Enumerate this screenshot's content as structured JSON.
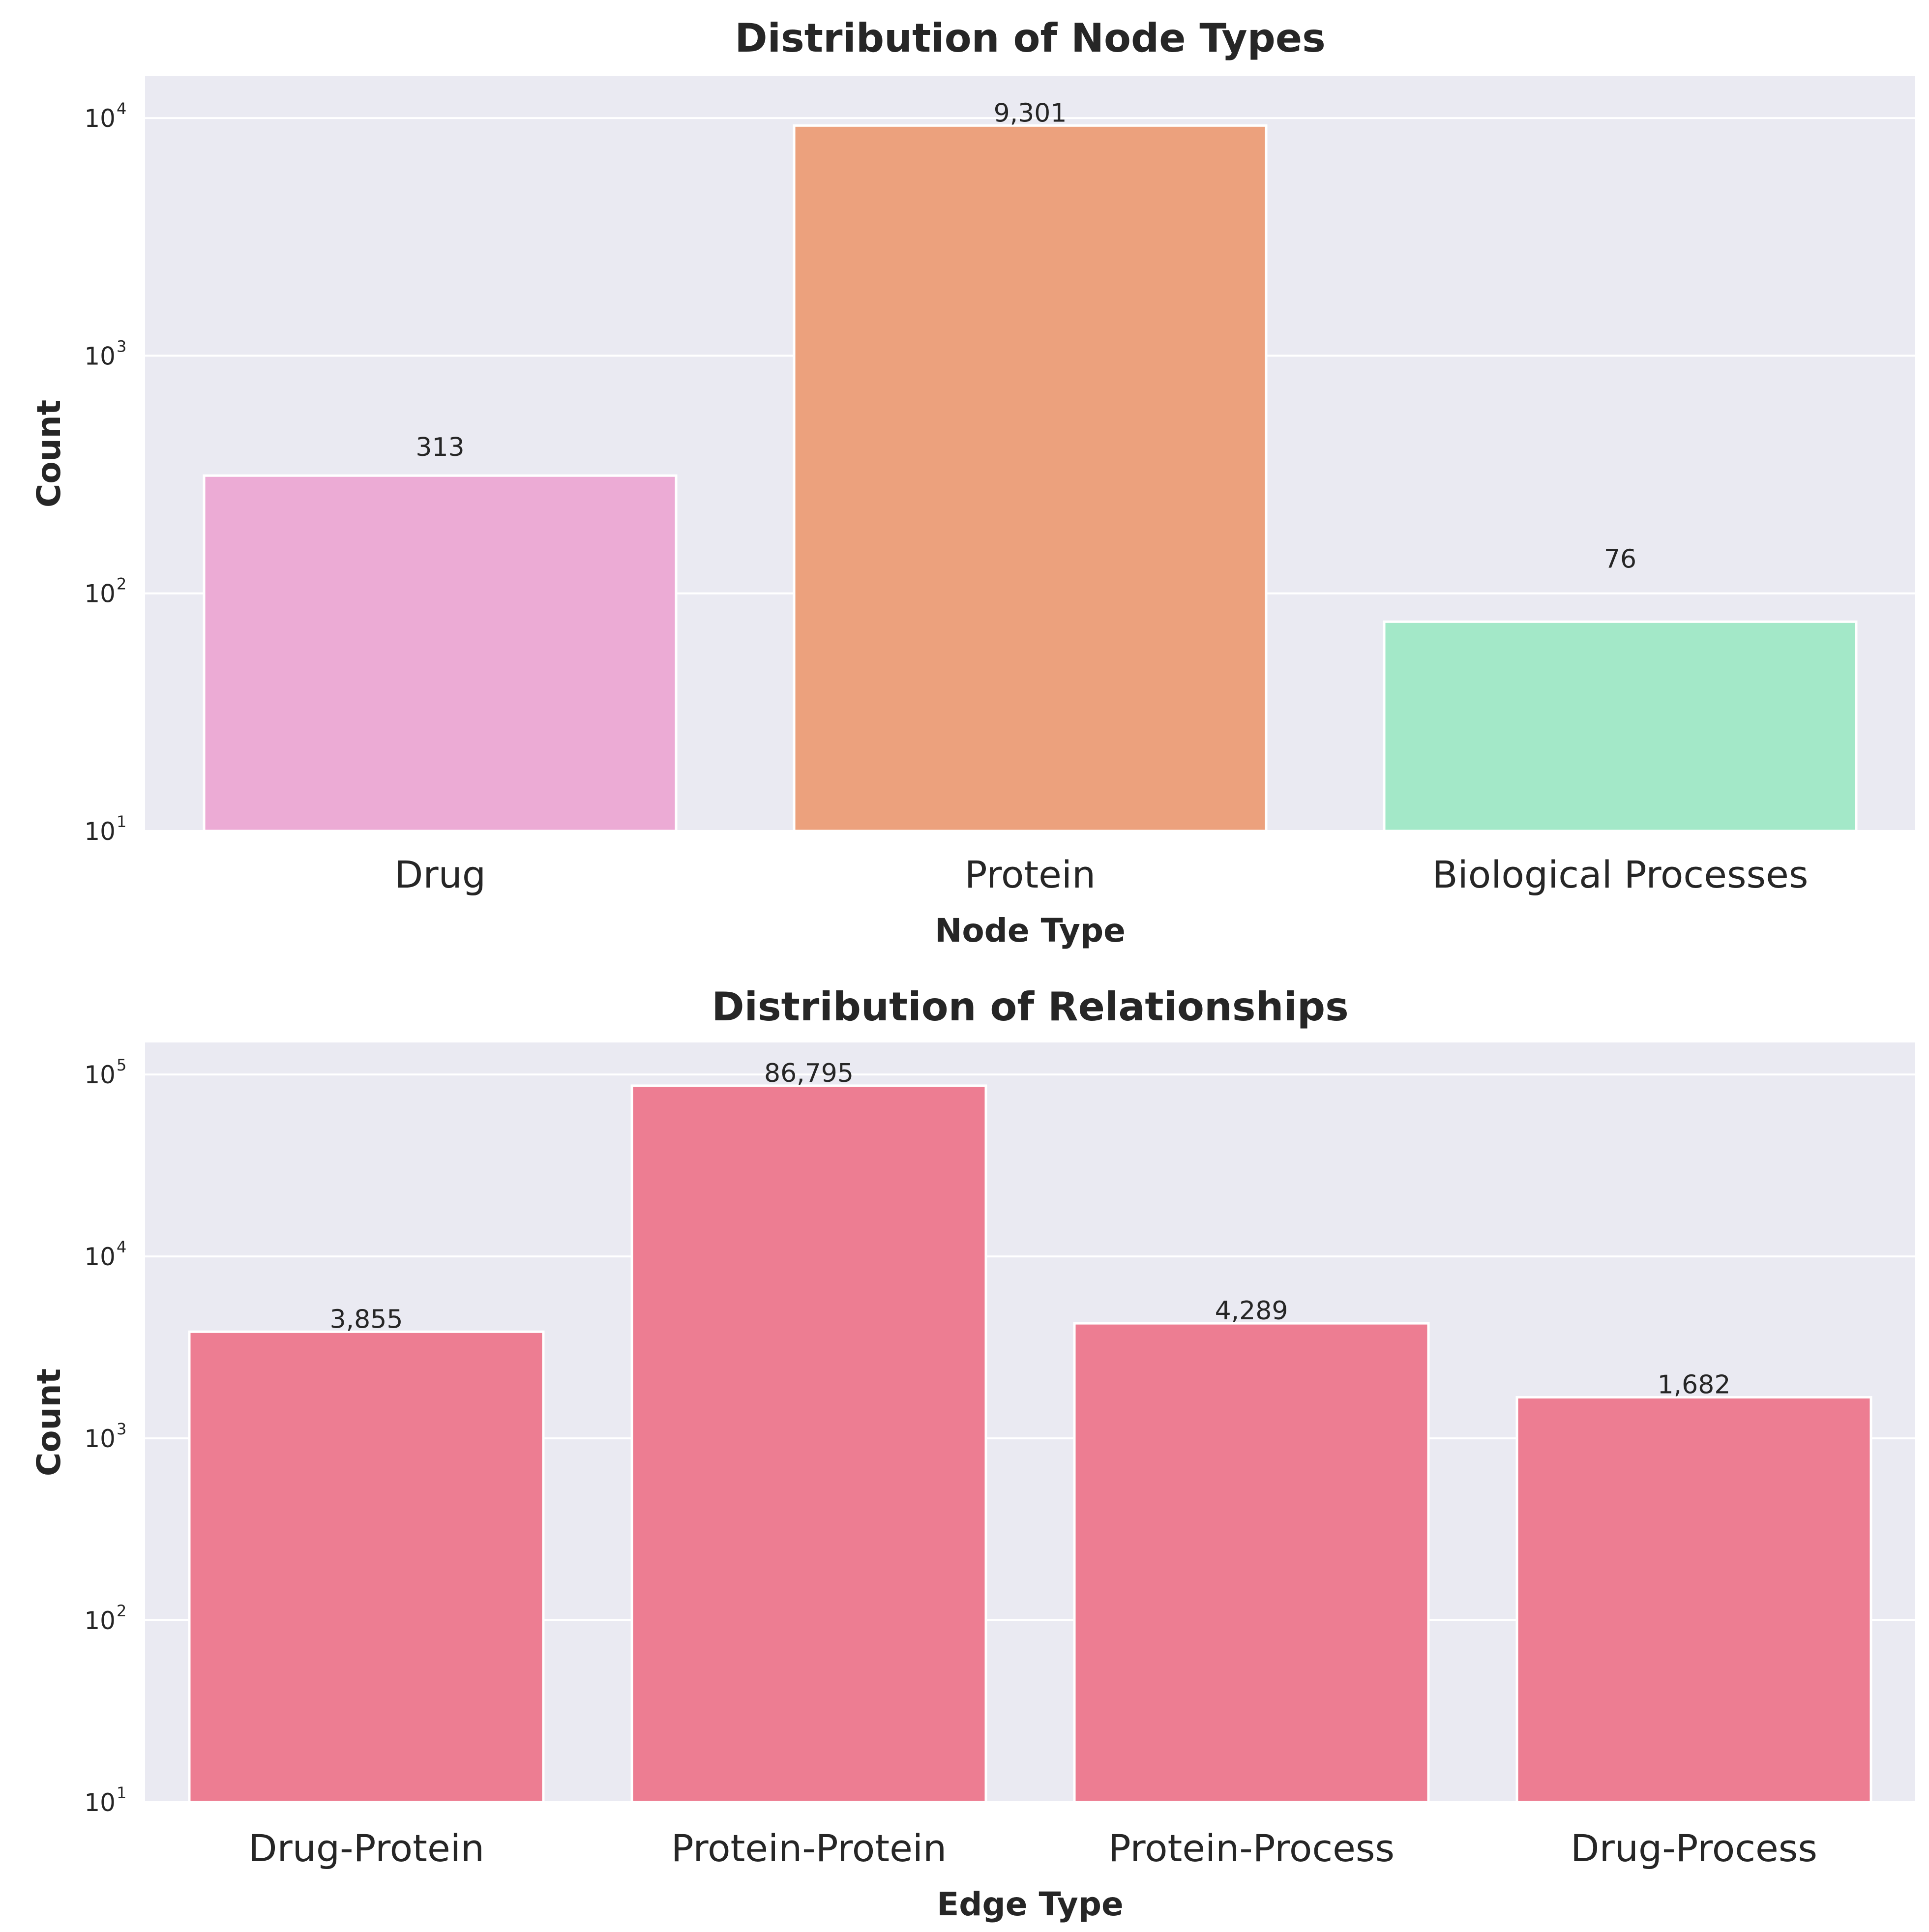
{
  "chart_data": [
    {
      "type": "bar",
      "title": "Distribution of Node Types",
      "xlabel": "Node Type",
      "ylabel": "Count",
      "yscale": "log",
      "ylim": [
        10,
        15000
      ],
      "yticks": [
        {
          "base": "10",
          "exp": "1"
        },
        {
          "base": "10",
          "exp": "2"
        },
        {
          "base": "10",
          "exp": "3"
        },
        {
          "base": "10",
          "exp": "4"
        }
      ],
      "grid": true,
      "background": "#eaeaf2",
      "categories": [
        "Drug",
        "Protein",
        "Biological Processes"
      ],
      "values": [
        313,
        9301,
        76
      ],
      "value_labels": [
        "313",
        "9,301",
        "76"
      ],
      "colors": [
        "#ecabd5",
        "#eca17d",
        "#a3e8c8"
      ]
    },
    {
      "type": "bar",
      "title": "Distribution of Relationships",
      "xlabel": "Edge Type",
      "ylabel": "Count",
      "yscale": "log",
      "ylim": [
        10,
        150000
      ],
      "yticks": [
        {
          "base": "10",
          "exp": "1"
        },
        {
          "base": "10",
          "exp": "2"
        },
        {
          "base": "10",
          "exp": "3"
        },
        {
          "base": "10",
          "exp": "4"
        },
        {
          "base": "10",
          "exp": "5"
        }
      ],
      "grid": true,
      "background": "#eaeaf2",
      "categories": [
        "Drug-Protein",
        "Protein-Protein",
        "Protein-Process",
        "Drug-Process"
      ],
      "values": [
        3855,
        86795,
        4289,
        1682
      ],
      "value_labels": [
        "3,855",
        "86,795",
        "4,289",
        "1,682"
      ],
      "colors": [
        "#ed7d92",
        "#ed7d92",
        "#ed7d92",
        "#ed7d92"
      ]
    }
  ]
}
